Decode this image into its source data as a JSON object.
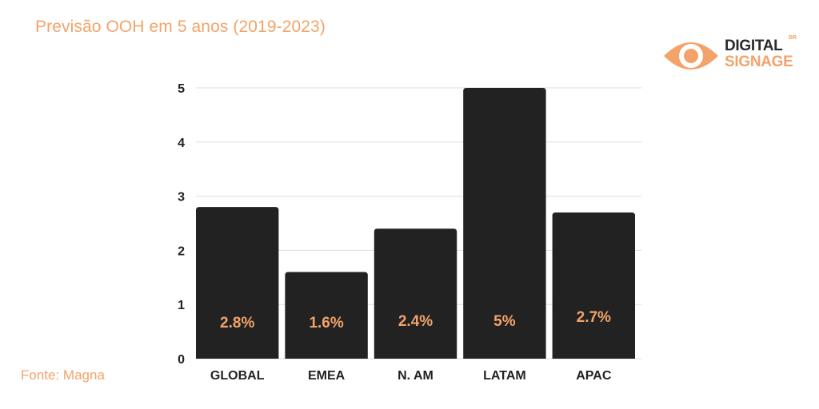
{
  "header": {
    "title": "Previsão OOH em 5 anos (2019-2023)"
  },
  "footer": {
    "source": "Fonte: Magna"
  },
  "logo": {
    "line1": "DIGITAL",
    "line2": "SIGNAGE",
    "superscript": "BR",
    "icon": "eye-icon"
  },
  "colors": {
    "accent": "#f3a36a",
    "bar": "#222222",
    "grid": "#dddddd",
    "axis_text": "#222222"
  },
  "chart_data": {
    "type": "bar",
    "title": "Previsão OOH em 5 anos (2019-2023)",
    "categories": [
      "GLOBAL",
      "EMEA",
      "N. AM",
      "LATAM",
      "APAC"
    ],
    "values": [
      2.8,
      1.6,
      2.4,
      5,
      2.7
    ],
    "data_labels": [
      "2.8%",
      "1.6%",
      "2.4%",
      "5%",
      "2.7%"
    ],
    "yticks": [
      "0",
      "1",
      "2",
      "3",
      "4",
      "5"
    ],
    "ylim": [
      0,
      5
    ],
    "xlabel": "",
    "ylabel": "",
    "grid": true,
    "legend": "none"
  }
}
